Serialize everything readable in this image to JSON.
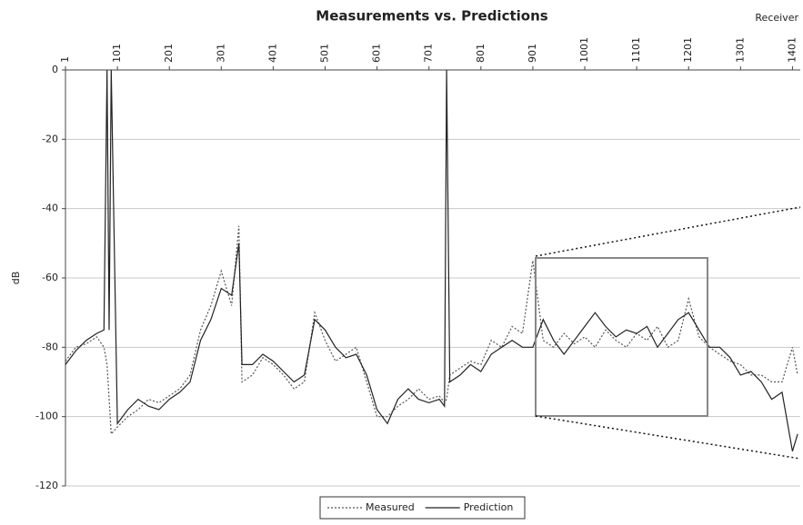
{
  "chart_data": {
    "type": "line",
    "title": "Measurements vs. Predictions",
    "x_label": "Receiver",
    "y_label": "dB",
    "x": [
      1,
      21,
      41,
      61,
      75,
      81,
      85,
      89,
      101,
      121,
      141,
      161,
      181,
      201,
      221,
      241,
      261,
      281,
      301,
      321,
      335,
      341,
      361,
      381,
      401,
      421,
      441,
      461,
      481,
      501,
      521,
      541,
      561,
      581,
      601,
      621,
      641,
      661,
      681,
      701,
      721,
      731,
      735,
      741,
      761,
      781,
      801,
      821,
      841,
      861,
      881,
      901,
      921,
      941,
      961,
      981,
      1001,
      1021,
      1041,
      1061,
      1081,
      1101,
      1121,
      1141,
      1161,
      1181,
      1201,
      1221,
      1241,
      1261,
      1281,
      1301,
      1321,
      1341,
      1361,
      1381,
      1401,
      1411
    ],
    "series": [
      {
        "name": "Measured",
        "color": "#555555",
        "line_style": "dotted",
        "values": [
          -84,
          -80,
          -79,
          -77,
          -80,
          -85,
          -95,
          -105,
          -103,
          -100,
          -98,
          -95,
          -96,
          -94,
          -92,
          -88,
          -75,
          -68,
          -58,
          -68,
          -45,
          -90,
          -88,
          -83,
          -85,
          -88,
          -92,
          -90,
          -70,
          -78,
          -84,
          -82,
          -80,
          -90,
          -100,
          -100,
          -97,
          -95,
          -92,
          -95,
          -94,
          -96,
          -95,
          -88,
          -86,
          -84,
          -85,
          -78,
          -80,
          -74,
          -76,
          -55,
          -78,
          -80,
          -76,
          -79,
          -77,
          -80,
          -75,
          -78,
          -80,
          -76,
          -78,
          -74,
          -80,
          -78,
          -66,
          -77,
          -80,
          -82,
          -84,
          -85,
          -88,
          -88,
          -90,
          -90,
          -80,
          -88
        ]
      },
      {
        "name": "Prediction",
        "color": "#222222",
        "line_style": "solid",
        "values": [
          -85,
          -81,
          -78,
          -76,
          -75,
          0,
          -75,
          0,
          -102,
          -98,
          -95,
          -97,
          -98,
          -95,
          -93,
          -90,
          -78,
          -72,
          -63,
          -65,
          -50,
          -85,
          -85,
          -82,
          -84,
          -87,
          -90,
          -88,
          -72,
          -75,
          -80,
          -83,
          -82,
          -88,
          -98,
          -102,
          -95,
          -92,
          -95,
          -96,
          -95,
          -97,
          0,
          -90,
          -88,
          -85,
          -87,
          -82,
          -80,
          -78,
          -80,
          -80,
          -72,
          -78,
          -82,
          -78,
          -74,
          -70,
          -74,
          -77,
          -75,
          -76,
          -74,
          -80,
          -76,
          -72,
          -70,
          -75,
          -80,
          -80,
          -83,
          -88,
          -87,
          -90,
          -95,
          -93,
          -110,
          -105
        ]
      }
    ],
    "xlim": [
      1,
      1416
    ],
    "xticks": [
      1,
      101,
      201,
      301,
      401,
      501,
      601,
      701,
      801,
      901,
      1001,
      1101,
      1201,
      1301,
      1401
    ],
    "ylim": [
      -120,
      0
    ],
    "yticks": [
      0,
      -20,
      -40,
      -60,
      -80,
      -100,
      -120
    ],
    "grid": true,
    "legend": "bottom"
  }
}
